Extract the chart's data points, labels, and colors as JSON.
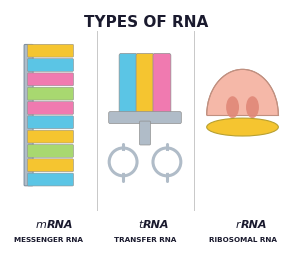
{
  "title": "TYPES OF RNA",
  "title_fontsize": 11,
  "title_fontweight": "bold",
  "background_color": "#ffffff",
  "divider_color": "#c8c8c8",
  "mrna_label_bold": "RNA",
  "mrna_label_regular": "m",
  "mrna_sublabel": "MESSENGER RNA",
  "trna_label_bold": "RNA",
  "trna_label_regular": "t",
  "trna_sublabel": "TRANSFER RNA",
  "rrna_label_bold": "RNA",
  "rrna_label_regular": "r",
  "rrna_sublabel": "RIBOSOMAL RNA",
  "mrna_backbone_color": "#b0bcc8",
  "mrna_bar_colors": [
    "#f5c530",
    "#5bc5e5",
    "#f07ab0",
    "#a8d870",
    "#f07ab0",
    "#5bc5e5",
    "#f5c530",
    "#a8d870",
    "#f5c530",
    "#5bc5e5"
  ],
  "trna_stem_colors": [
    "#5bc5e5",
    "#f5c530",
    "#f07ab0"
  ],
  "trna_body_color": "#b0bcc8",
  "rrna_top_light": "#f5b8a8",
  "rrna_top_dark": "#e08878",
  "rrna_bottom_color": "#f5c530",
  "label_fontsize": 7.5,
  "sublabel_fontsize": 5.2
}
